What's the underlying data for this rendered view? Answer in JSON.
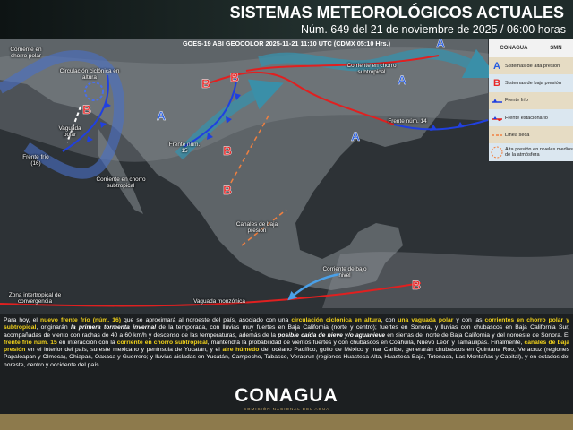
{
  "header": {
    "title": "SISTEMAS METEOROLÓGICOS ACTUALES",
    "subtitle": "Núm. 649 del 21 de noviembre de 2025 / 06:00 horas"
  },
  "map": {
    "caption": "GOES-19 ABI GEOCOLOR 2025-11-21 11:10 UTC (CDMX  05:10 Hrs.)",
    "labels": [
      "Corriente en chorro polar",
      "Circulación ciclónica en altura",
      "Vaguada polar",
      "Frente frío (16)",
      "Corriente en chorro subtropical",
      "Frente núm. 15",
      "Corriente en chorro subtropical",
      "Frente núm. 14",
      "Canales de baja presión",
      "Corriente de bajo nivel",
      "Zona intertropical de convergencia",
      "Vaguada monzónica"
    ],
    "pressure_centers": [
      "B",
      "B",
      "B",
      "A",
      "A",
      "A",
      "A",
      "B",
      "B",
      "B"
    ]
  },
  "legend": {
    "logos": [
      "CONAGUA",
      "SMN"
    ],
    "items": [
      {
        "symbol": "A",
        "text": "Sistemas de alta presión"
      },
      {
        "symbol": "B",
        "text": "Sistemas de baja presión"
      },
      {
        "symbol": "cold",
        "text": "Frente frío"
      },
      {
        "symbol": "stationary",
        "text": "Frente estacionario"
      },
      {
        "symbol": "dry",
        "text": "Línea seca"
      },
      {
        "symbol": "upper-high",
        "text": "Alta presión en niveles medios de la atmósfera"
      }
    ]
  },
  "body": {
    "segments": [
      {
        "text": "Para hoy, el ",
        "emphasis": "none"
      },
      {
        "text": "nuevo frente frío (núm. 16)",
        "emphasis": "bold"
      },
      {
        "text": " que se aproximará al noroeste del país, asociado con una ",
        "emphasis": "none"
      },
      {
        "text": "circulación ciclónica en altura",
        "emphasis": "bold"
      },
      {
        "text": ", con ",
        "emphasis": "none"
      },
      {
        "text": "una vaguada polar",
        "emphasis": "bold"
      },
      {
        "text": " y con las ",
        "emphasis": "none"
      },
      {
        "text": "corrientes en chorro polar y subtropical",
        "emphasis": "bold"
      },
      {
        "text": ", originarán ",
        "emphasis": "none"
      },
      {
        "text": "la primera tormenta invernal",
        "emphasis": "italic"
      },
      {
        "text": " de la temporada, con lluvias muy fuertes en Baja California (norte y centro); fuertes en Sonora, y lluvias con chubascos en Baja California Sur, acompañadas de viento con rachas de 40 a 60 km/h y descenso de las temperaturas, además de la ",
        "emphasis": "none"
      },
      {
        "text": "posible caída de nieve y/o aguanieve",
        "emphasis": "italic"
      },
      {
        "text": " en sierras del norte de Baja California y del noroeste de Sonora. El ",
        "emphasis": "none"
      },
      {
        "text": "frente frío núm. 15",
        "emphasis": "bold"
      },
      {
        "text": " en interacción con la ",
        "emphasis": "none"
      },
      {
        "text": "corriente en chorro subtropical",
        "emphasis": "bold"
      },
      {
        "text": ", mantendrá la probabilidad de vientos fuertes y con chubascos en Coahuila, Nuevo León y Tamaulipas. Finalmente, ",
        "emphasis": "none"
      },
      {
        "text": "canales de baja presión",
        "emphasis": "bold"
      },
      {
        "text": " en el interior del país, sureste mexicano y península de Yucatán, y el ",
        "emphasis": "none"
      },
      {
        "text": "aire húmedo",
        "emphasis": "bold"
      },
      {
        "text": " del océano Pacífico, golfo de México y mar Caribe, generarán chubascos en Quintana Roo, Veracruz (regiones Papaloapan y Olmeca), Chiapas, Oaxaca y Guerrero; y lluvias aisladas en Yucatán, Campeche, Tabasco, Veracruz (regiones Huasteca Alta, Huasteca Baja, Totonaca, Las Montañas y Capital), y en estados del noreste, centro y occidente del país.",
        "emphasis": "none"
      }
    ]
  },
  "footer": {
    "logo": "CONAGUA",
    "agency": "COMISIÓN NACIONAL DEL AGUA"
  }
}
